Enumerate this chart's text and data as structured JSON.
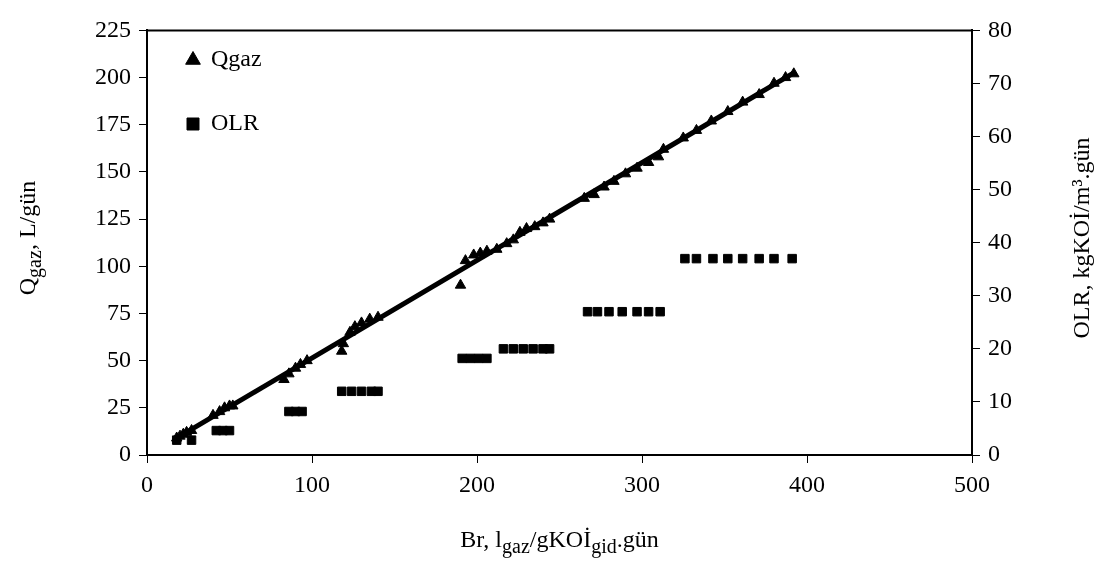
{
  "chart_data": {
    "type": "scatter",
    "xlabel": "Br, l$_{gaz}$/gKOİ$_{gid}$.gün",
    "ylabel": "Q$_{gaz}$, L/gün",
    "y2label": "OLR, kgKOİ/m³.gün",
    "xlim": [
      0,
      500
    ],
    "xticks": [
      0,
      100,
      200,
      300,
      400,
      500
    ],
    "ylim": [
      0,
      225
    ],
    "yticks": [
      0,
      25,
      50,
      75,
      100,
      125,
      150,
      175,
      200,
      225
    ],
    "y2lim": [
      0,
      80
    ],
    "y2ticks": [
      0,
      10,
      20,
      30,
      40,
      50,
      60,
      70,
      80
    ],
    "grid": false,
    "legend": "top left",
    "series": [
      {
        "name": "Qgaz",
        "type": "scatter",
        "marker": "triangle",
        "color": "#000000",
        "x": [
          18,
          20,
          22,
          24,
          27,
          40,
          44,
          47,
          50,
          52,
          83,
          86,
          90,
          93,
          97,
          118,
          119,
          123,
          126,
          130,
          135,
          140,
          190,
          193,
          198,
          202,
          206,
          212,
          218,
          222,
          226,
          230,
          235,
          240,
          244,
          265,
          271,
          277,
          283,
          290,
          297,
          304,
          310,
          313,
          325,
          333,
          342,
          352,
          361,
          371,
          380,
          387,
          392
        ],
        "values": [
          9,
          10,
          11,
          12,
          13,
          21,
          23,
          25,
          26,
          26,
          40,
          43,
          46,
          48,
          50,
          55,
          59,
          65,
          68,
          70,
          72,
          73,
          90,
          103,
          106,
          107,
          108,
          109,
          112,
          114,
          118,
          120,
          121,
          123,
          125,
          136,
          138,
          142,
          145,
          149,
          152,
          155,
          158,
          162,
          168,
          172,
          177,
          182,
          187,
          191,
          197,
          200,
          202
        ]
      },
      {
        "name": "OLR",
        "type": "scatter",
        "marker": "square",
        "color": "#000000",
        "axis": "y2",
        "x": [
          18,
          27,
          42,
          46,
          50,
          86,
          90,
          94,
          118,
          124,
          130,
          136,
          140,
          191,
          196,
          201,
          206,
          216,
          222,
          228,
          234,
          240,
          244,
          267,
          273,
          280,
          288,
          297,
          304,
          311,
          326,
          333,
          343,
          352,
          361,
          371,
          380,
          391
        ],
        "values": [
          2.8,
          2.8,
          4.6,
          4.6,
          4.6,
          8.2,
          8.2,
          8.2,
          12,
          12,
          12,
          12,
          12,
          18.2,
          18.2,
          18.2,
          18.2,
          20,
          20,
          20,
          20,
          20,
          20,
          27,
          27,
          27,
          27,
          27,
          27,
          27,
          37,
          37,
          37,
          37,
          37,
          37,
          37,
          37
        ]
      },
      {
        "type": "line",
        "marker": "none",
        "line_style": "solid",
        "color": "#000000",
        "x": [
          20,
          393
        ],
        "values": [
          10,
          203
        ]
      }
    ]
  }
}
